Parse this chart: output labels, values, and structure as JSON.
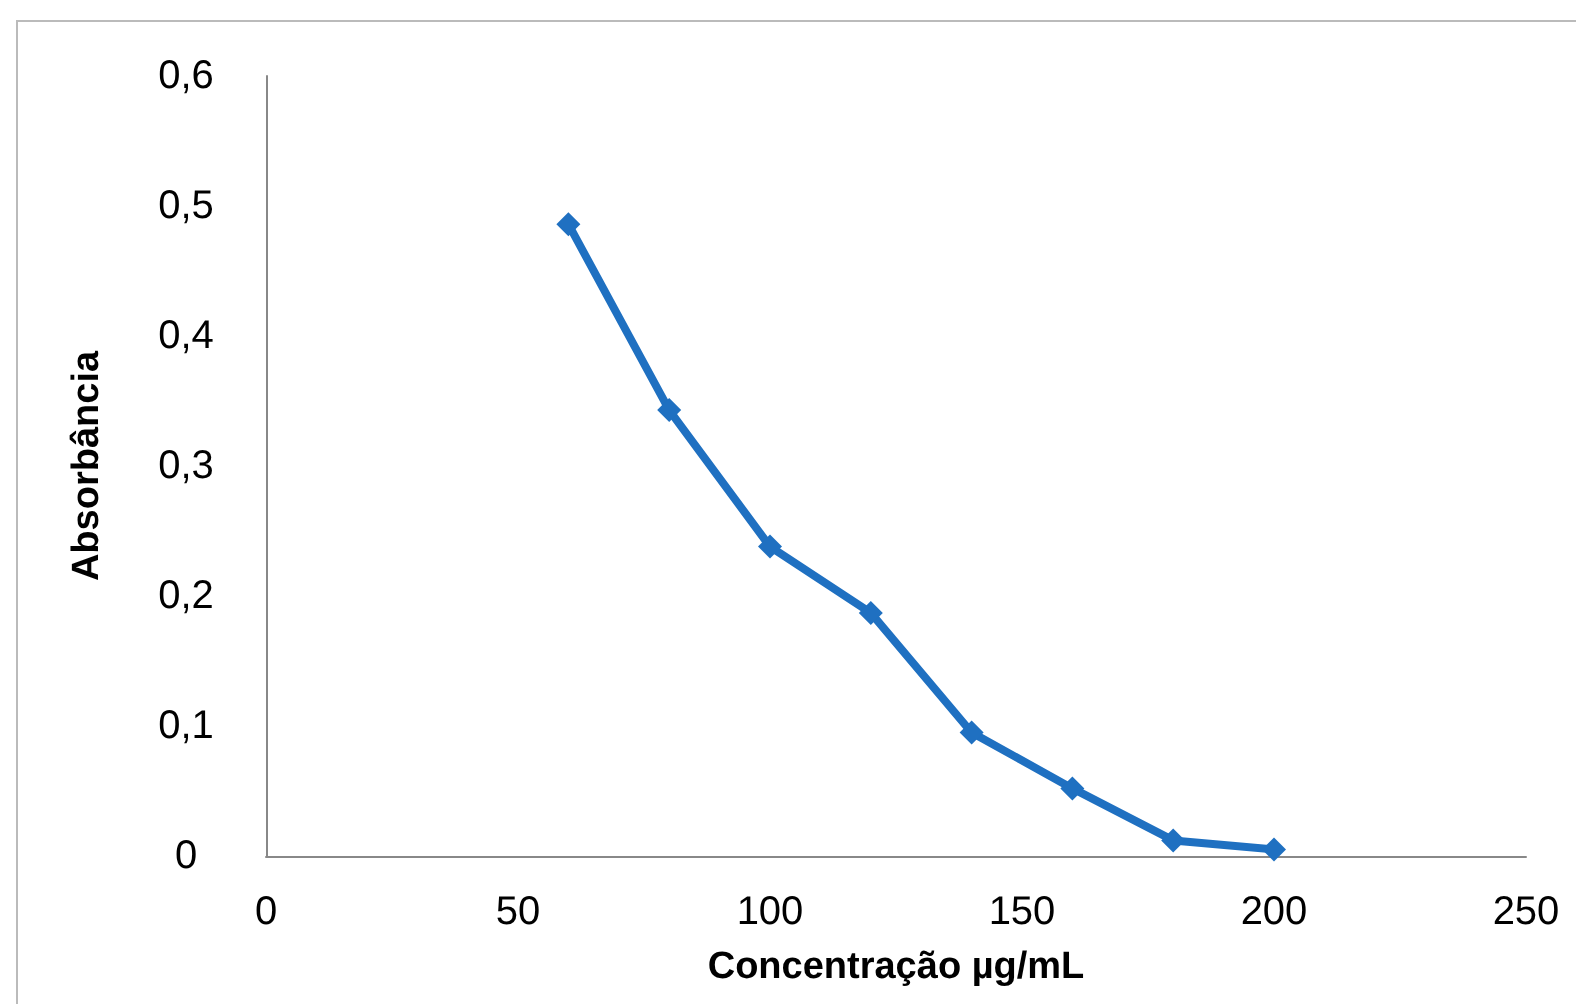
{
  "chart_data": {
    "type": "line",
    "xlabel": "Concentração µg/mL",
    "ylabel": "Absorbância",
    "x": [
      60,
      80,
      100,
      120,
      140,
      160,
      180,
      200
    ],
    "series": [
      {
        "color": "#1f70c1",
        "values": [
          0.486,
          0.343,
          0.238,
          0.187,
          0.095,
          0.052,
          0.012,
          0.005
        ]
      }
    ],
    "xlim": [
      0,
      250
    ],
    "xticks": [
      0,
      50,
      100,
      150,
      200,
      250
    ],
    "ylim": [
      0,
      0.6
    ],
    "yticks": [
      0,
      {
        "value": 0.1,
        "label": "0,1"
      },
      {
        "value": 0.2,
        "label": "0,2"
      },
      {
        "value": 0.3,
        "label": "0,3"
      },
      {
        "value": 0.4,
        "label": "0,4"
      },
      {
        "value": 0.5,
        "label": "0,5"
      },
      {
        "value": 0.6,
        "label": "0,6"
      }
    ],
    "marker": "diamond",
    "line_style": "solid"
  }
}
